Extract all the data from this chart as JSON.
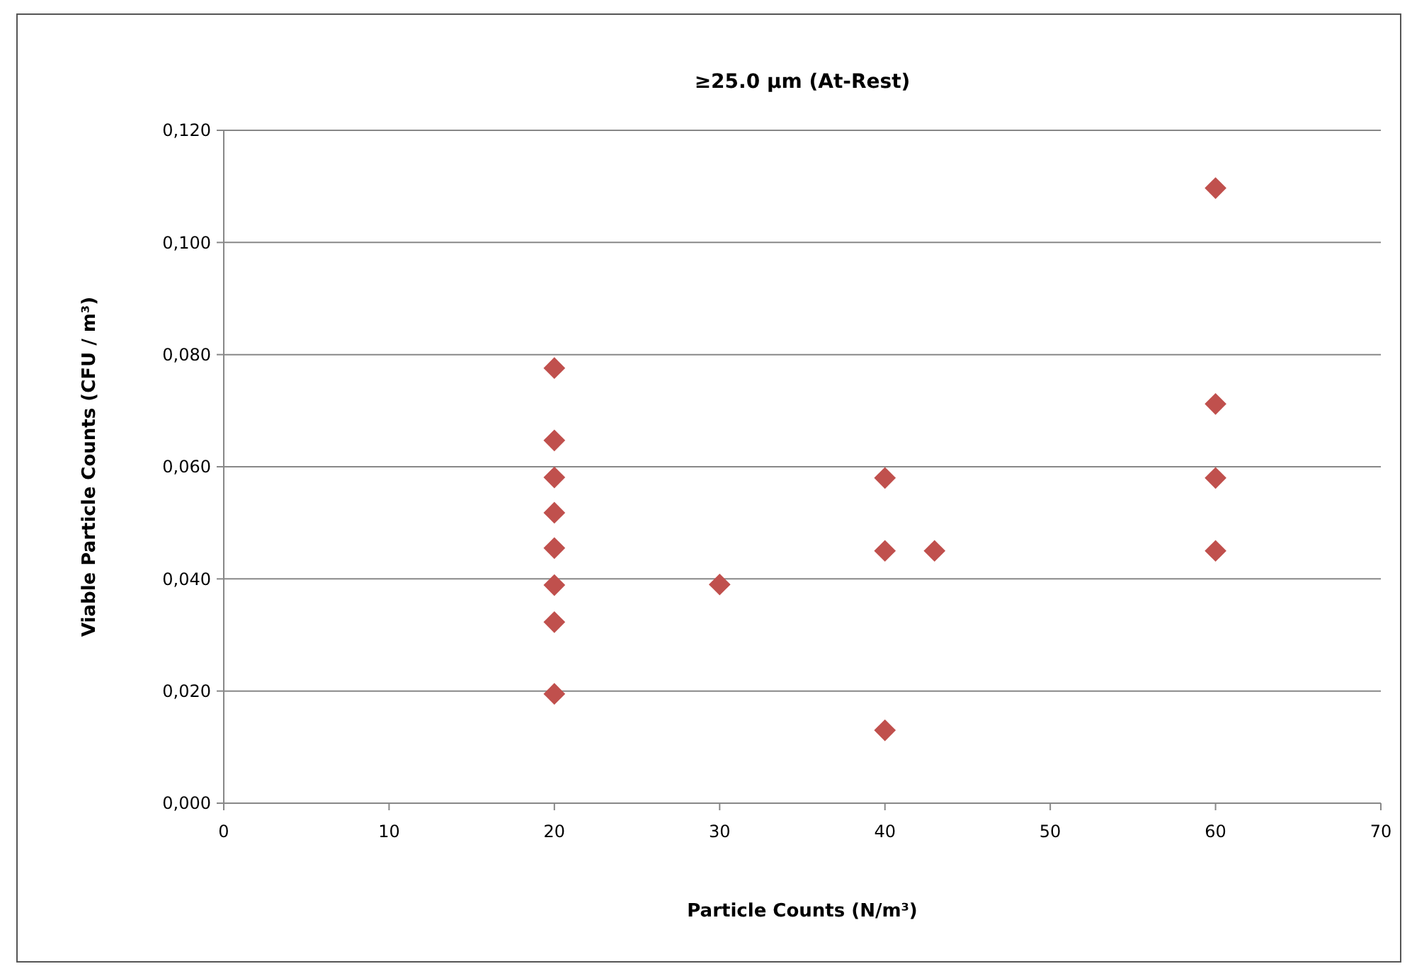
{
  "chart_data": {
    "type": "scatter",
    "title": "≥25.0 µm (At-Rest)",
    "xlabel": "Particle Counts (N/m³)",
    "ylabel": "Viable Particle Counts (CFU / m³)",
    "series": [
      {
        "color": "#c0504d",
        "x": [
          20,
          20,
          20,
          20,
          20,
          20,
          20,
          20,
          30,
          40,
          40,
          40,
          43,
          60,
          60,
          60,
          60
        ],
        "values": [
          0.0776,
          0.0647,
          0.0581,
          0.0518,
          0.0455,
          0.0389,
          0.0323,
          0.0195,
          0.039,
          0.058,
          0.045,
          0.013,
          0.045,
          0.1097,
          0.0712,
          0.058,
          0.045
        ]
      }
    ],
    "xlim": [
      0,
      70
    ],
    "xticks": [
      0,
      10,
      20,
      30,
      40,
      50,
      60,
      70
    ],
    "ylim": [
      0,
      0.12
    ],
    "yticks": [
      {
        "value": 0,
        "label": "0,000"
      },
      {
        "value": 0.02,
        "label": "0,020"
      },
      {
        "value": 0.04,
        "label": "0,040"
      },
      {
        "value": 0.06,
        "label": "0,060"
      },
      {
        "value": 0.08,
        "label": "0,080"
      },
      {
        "value": 0.1,
        "label": "0,100"
      },
      {
        "value": 0.12,
        "label": "0,120"
      }
    ],
    "grid": "y",
    "marker": "diamond"
  }
}
